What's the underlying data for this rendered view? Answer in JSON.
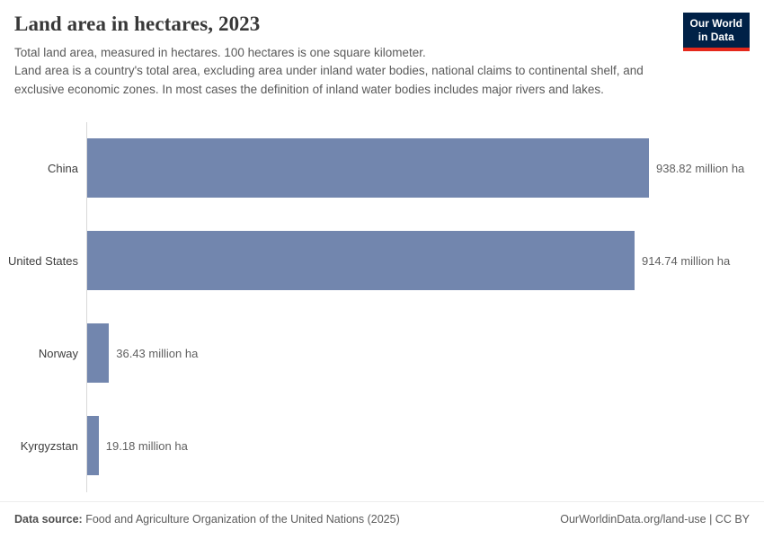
{
  "header": {
    "title": "Land area in hectares, 2023",
    "subtitle_line1": "Total land area, measured in hectares. 100 hectares is one square kilometer.",
    "subtitle_rest": "Land area is a country's total area, excluding area under inland water bodies, national claims to continental shelf, and exclusive economic zones. In most cases the definition of inland water bodies includes major rivers and lakes.",
    "logo": {
      "line1": "Our World",
      "line2": "in Data"
    }
  },
  "chart_data": {
    "type": "bar",
    "orientation": "horizontal",
    "title": "Land area in hectares, 2023",
    "categories": [
      "China",
      "United States",
      "Norway",
      "Kyrgyzstan"
    ],
    "values": [
      938.82,
      914.74,
      36.43,
      19.18
    ],
    "value_labels": [
      "938.82 million ha",
      "914.74 million ha",
      "36.43 million ha",
      "19.18 million ha"
    ],
    "unit": "million ha",
    "xlim": [
      0,
      940
    ],
    "grid": "off",
    "legend": "none",
    "bar_color": "#7286ae"
  },
  "footer": {
    "data_source_label": "Data source:",
    "data_source": "Food and Agriculture Organization of the United Nations (2025)",
    "right": "OurWorldinData.org/land-use | CC BY"
  }
}
